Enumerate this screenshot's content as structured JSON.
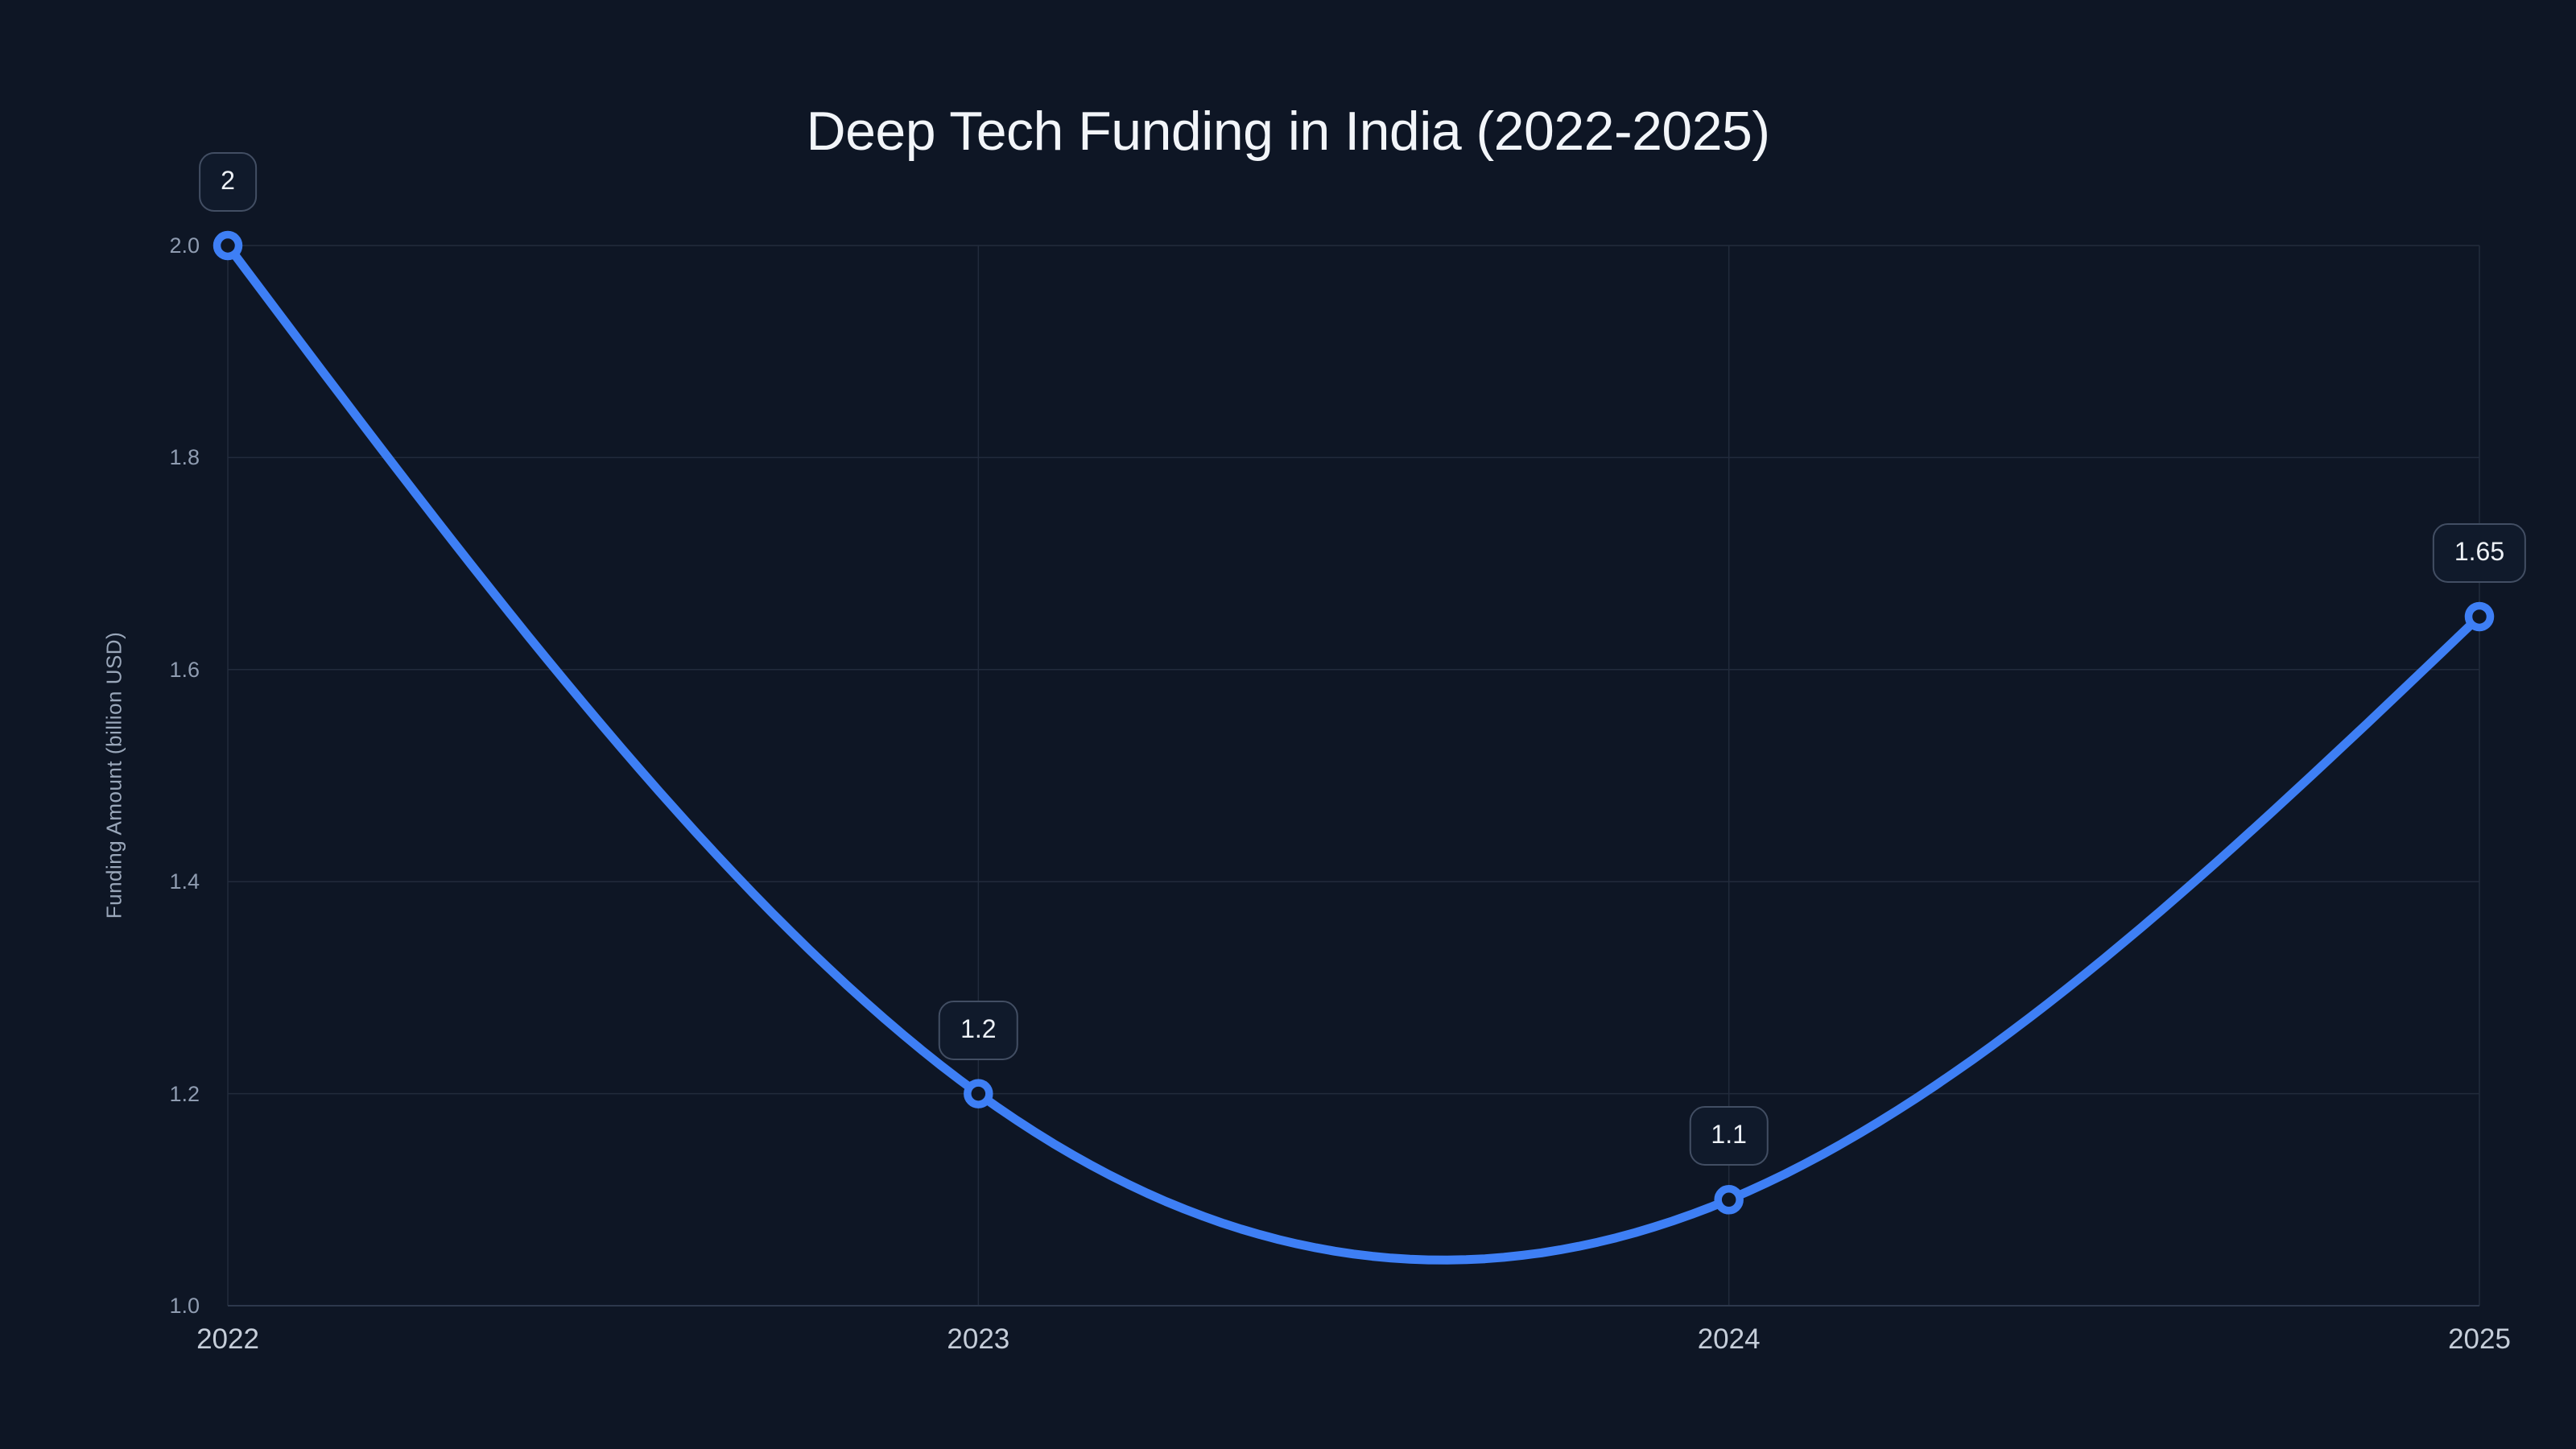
{
  "colors": {
    "background": "#0e1625",
    "line": "#3e7ff5",
    "grid": "#222b3c",
    "axis_line": "#2d384c",
    "title_text": "#f2f5f9",
    "ylabel_text": "#9aa7ba",
    "ytick_text": "#8f9cb1",
    "xtick_text": "#c5cdd9",
    "label_box_border": "#424e63",
    "label_box_bg": "#101a2b",
    "label_box_text": "#edf1f6"
  },
  "chart_data": {
    "type": "line",
    "title": "Deep Tech Funding in India (2022-2025)",
    "xlabel": "",
    "ylabel": "Funding Amount (billion USD)",
    "categories": [
      "2022",
      "2023",
      "2024",
      "2025"
    ],
    "series": [
      {
        "name": "Funding Amount (billion USD)",
        "values": [
          2,
          1.2,
          1.1,
          1.65
        ]
      }
    ],
    "point_labels": [
      "2",
      "1.2",
      "1.1",
      "1.65"
    ],
    "ylim": [
      1.0,
      2.0
    ],
    "yticks": [
      1.0,
      1.2,
      1.4,
      1.6,
      1.8,
      2.0
    ],
    "ytick_labels": [
      "1.0",
      "1.2",
      "1.4",
      "1.6",
      "1.8",
      "2.0"
    ],
    "grid": true,
    "legend": false,
    "smooth": true,
    "line_interpolation": "natural-cubic-spline"
  }
}
